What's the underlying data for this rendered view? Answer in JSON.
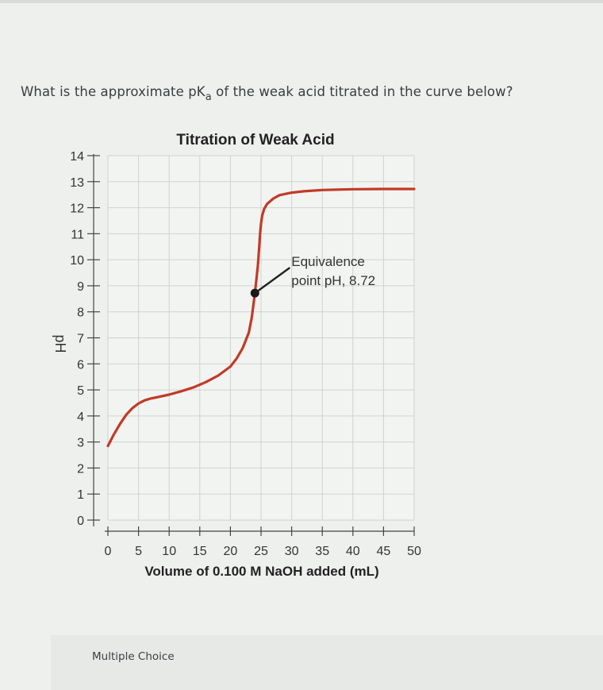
{
  "question": {
    "text_before": "What is the approximate pK",
    "subscript": "a",
    "text_after": " of the weak acid titrated in the curve below?"
  },
  "chart_data": {
    "type": "line",
    "title": "Titration of Weak Acid",
    "xlabel": "Volume of 0.100 M NaOH added (mL)",
    "ylabel": "pH",
    "xlim": [
      0,
      50
    ],
    "ylim": [
      0,
      14
    ],
    "x_ticks": [
      "0",
      "5",
      "10",
      "15",
      "20",
      "25",
      "30",
      "35",
      "40",
      "45",
      "50"
    ],
    "y_ticks": [
      "0",
      "1",
      "2",
      "3",
      "4",
      "5",
      "6",
      "7",
      "8",
      "9",
      "10",
      "11",
      "12",
      "13",
      "14"
    ],
    "grid": true,
    "series": [
      {
        "color": "#c23a26",
        "x": [
          0,
          1,
          2,
          3,
          4,
          5,
          6,
          7,
          8,
          10,
          12,
          14,
          16,
          18,
          20,
          21,
          22,
          23,
          23.5,
          24,
          24.5,
          24.7,
          24.85,
          25,
          25.2,
          25.5,
          26,
          27,
          28,
          30,
          32,
          35,
          40,
          45,
          50
        ],
        "y": [
          2.85,
          3.3,
          3.7,
          4.05,
          4.3,
          4.48,
          4.6,
          4.67,
          4.72,
          4.82,
          4.95,
          5.1,
          5.3,
          5.55,
          5.9,
          6.2,
          6.6,
          7.2,
          7.8,
          8.72,
          9.8,
          10.5,
          11.0,
          11.4,
          11.7,
          11.95,
          12.15,
          12.35,
          12.48,
          12.58,
          12.63,
          12.68,
          12.71,
          12.72,
          12.72
        ]
      }
    ],
    "annotation": {
      "line1": "Equivalence",
      "line2": "point pH, 8.72",
      "x": 24,
      "y": 8.72
    }
  },
  "footer": {
    "multiple_choice_label": "Multiple Choice"
  },
  "colors": {
    "curve": "#c23a26",
    "grid": "#cfd3cf",
    "axis": "#444444",
    "marker": "#1a1a1a"
  }
}
